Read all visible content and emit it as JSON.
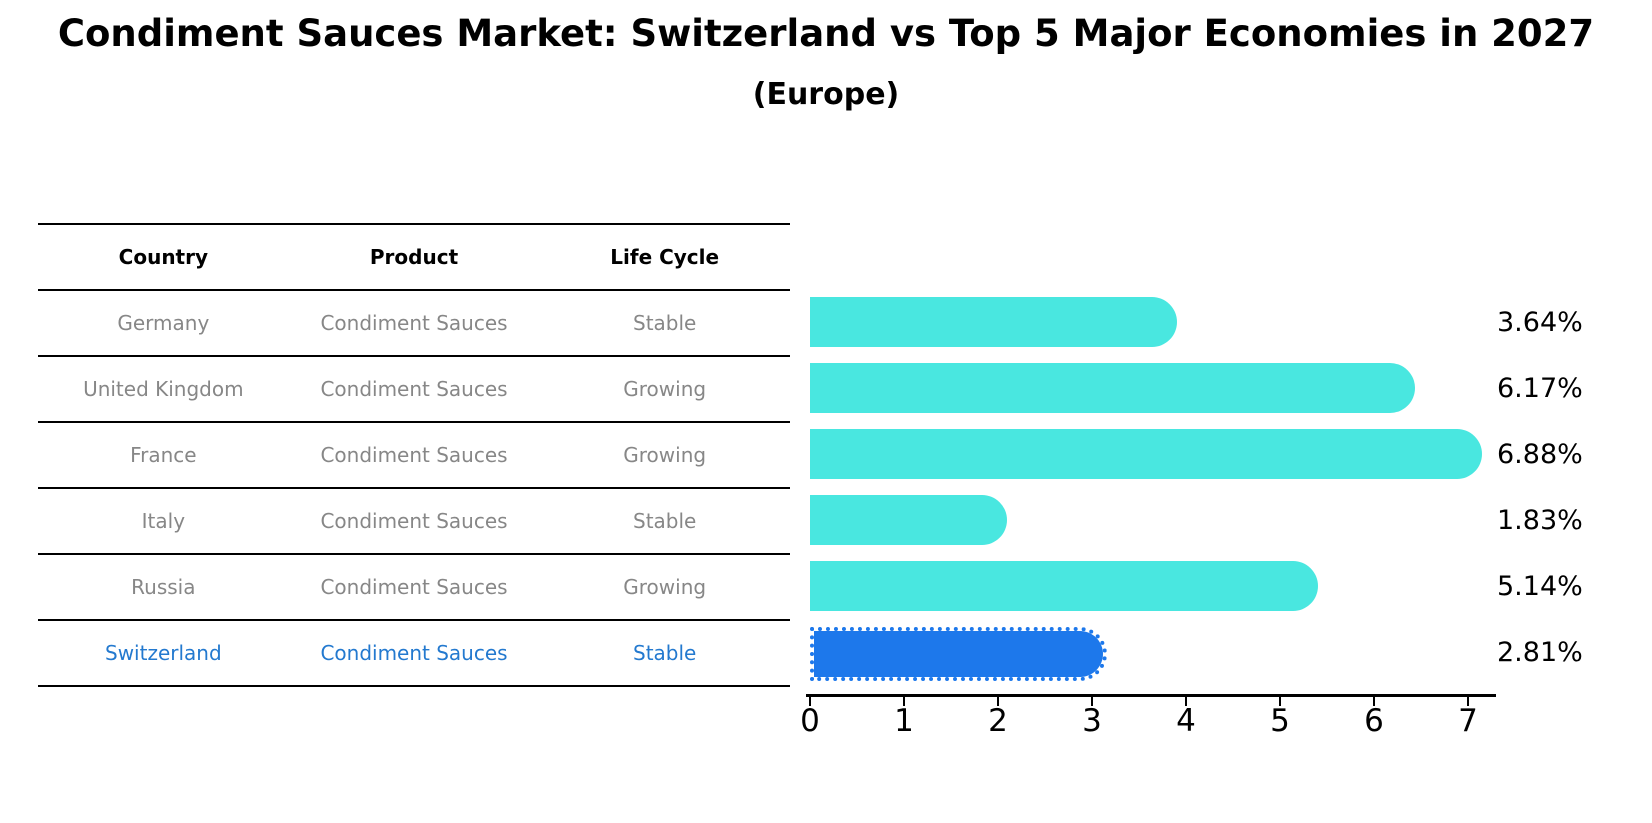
{
  "title": "Condiment Sauces Market: Switzerland vs Top 5 Major Economies in 2027",
  "subtitle": "(Europe)",
  "table": {
    "headers": [
      "Country",
      "Product",
      "Life Cycle"
    ],
    "rows": [
      {
        "country": "Germany",
        "product": "Condiment Sauces",
        "life_cycle": "Stable",
        "highlight": false
      },
      {
        "country": "United Kingdom",
        "product": "Condiment Sauces",
        "life_cycle": "Growing",
        "highlight": false
      },
      {
        "country": "France",
        "product": "Condiment Sauces",
        "life_cycle": "Growing",
        "highlight": false
      },
      {
        "country": "Italy",
        "product": "Condiment Sauces",
        "life_cycle": "Stable",
        "highlight": false
      },
      {
        "country": "Russia",
        "product": "Condiment Sauces",
        "life_cycle": "Growing",
        "highlight": false
      },
      {
        "country": "Switzerland",
        "product": "Condiment Sauces",
        "life_cycle": "Stable",
        "highlight": true
      }
    ]
  },
  "chart_data": {
    "type": "bar",
    "orientation": "horizontal",
    "title": "Condiment Sauces Market: Switzerland vs Top 5 Major Economies in 2027",
    "subtitle": "(Europe)",
    "categories": [
      "Germany",
      "United Kingdom",
      "France",
      "Italy",
      "Russia",
      "Switzerland"
    ],
    "values": [
      3.64,
      6.17,
      6.88,
      1.83,
      5.14,
      2.81
    ],
    "value_labels": [
      "3.64%",
      "6.17%",
      "6.88%",
      "1.83%",
      "5.14%",
      "2.81%"
    ],
    "x_ticks": [
      "0",
      "1",
      "2",
      "3",
      "4",
      "5",
      "6",
      "7"
    ],
    "xlim": [
      0,
      7.3
    ],
    "grid": false,
    "legend": "none",
    "bar_color": "#49e7e0",
    "highlight_index": 5,
    "highlight_color": "#1d78eb",
    "highlight_text_color": "#2379cf"
  }
}
